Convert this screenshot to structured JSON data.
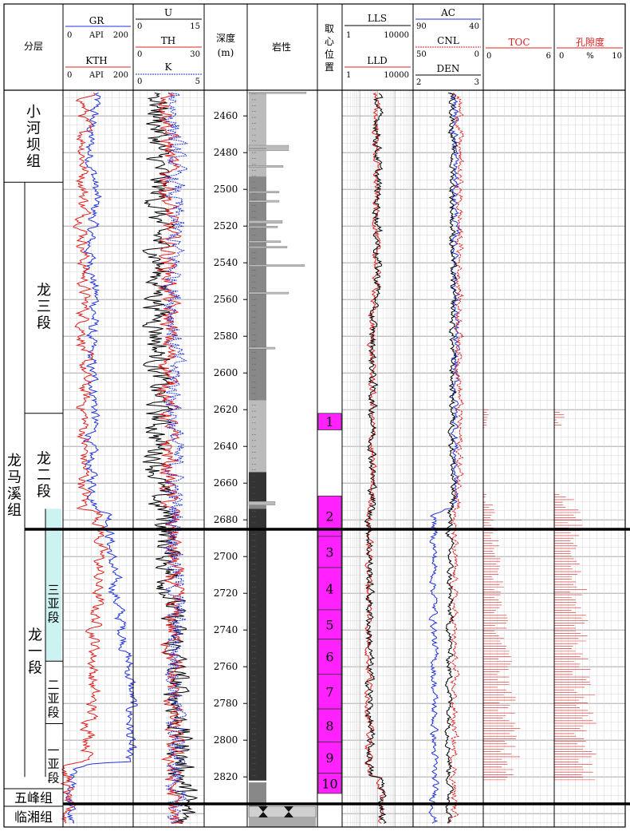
{
  "headers": {
    "layer": "分层",
    "gr": {
      "name": "GR",
      "min": "0",
      "unit": "API",
      "max": "200",
      "color": "#2233dd"
    },
    "kth": {
      "name": "KTH",
      "min": "0",
      "unit": "API",
      "max": "200",
      "color": "#e02020"
    },
    "u": {
      "name": "U",
      "min": "0",
      "max": "15",
      "color": "#000000"
    },
    "th": {
      "name": "TH",
      "min": "0",
      "max": "30",
      "color": "#e02020"
    },
    "k": {
      "name": "K",
      "min": "0",
      "max": "5",
      "color": "#2233dd"
    },
    "depth_l1": "深度",
    "depth_l2": "(m)",
    "litho": "岩性",
    "core_l1": "取",
    "core_l2": "心",
    "core_l3": "位",
    "core_l4": "置",
    "lls": {
      "name": "LLS",
      "min": "1",
      "max": "10000",
      "color": "#000000"
    },
    "lld": {
      "name": "LLD",
      "min": "1",
      "max": "10000",
      "color": "#e02020"
    },
    "ac": {
      "name": "AC",
      "min": "90",
      "max": "40",
      "color": "#2233dd"
    },
    "cnl": {
      "name": "CNL",
      "min": "50",
      "max": "0",
      "color": "#e02020"
    },
    "den": {
      "name": "DEN",
      "min": "2",
      "max": "3",
      "color": "#000000"
    },
    "toc": {
      "name": "TOC",
      "min": "0",
      "max": "6",
      "color": "#e02020"
    },
    "por": {
      "name": "孔隙度",
      "min": "0",
      "unit": "%",
      "max": "10",
      "color": "#e02020"
    }
  },
  "formations": [
    {
      "label": "小河坝组",
      "top": 2446,
      "bottom": 2500
    },
    {
      "label": "龙马溪组",
      "top": 2500,
      "bottom": 2820
    },
    {
      "label": "五峰组",
      "top": 2820,
      "bottom": 2823
    },
    {
      "label": "临湘组",
      "top": 2823,
      "bottom": 2836
    }
  ],
  "members": [
    {
      "label": "龙三段",
      "top": 2500,
      "bottom": 2622
    },
    {
      "label": "龙二段",
      "top": 2622,
      "bottom": 2674
    },
    {
      "label": "龙一段",
      "top": 2674,
      "bottom": 2820
    }
  ],
  "submembers": [
    {
      "label": "三亚段",
      "top": 2674,
      "bottom": 2757
    },
    {
      "label": "二亚段",
      "top": 2757,
      "bottom": 2791
    },
    {
      "label": "一亚段",
      "top": 2791,
      "bottom": 2820
    }
  ],
  "depth_ticks": [
    "2460",
    "2480",
    "2500",
    "2520",
    "2540",
    "2560",
    "2580",
    "2600",
    "2620",
    "2640",
    "2660",
    "2680",
    "2700",
    "2720",
    "2740",
    "2760",
    "2780",
    "2800",
    "2820"
  ],
  "cores": [
    {
      "label": "1",
      "top": 2622,
      "bottom": 2631
    },
    {
      "label": "2",
      "top": 2667,
      "bottom": 2689
    },
    {
      "label": "3",
      "top": 2689,
      "bottom": 2706
    },
    {
      "label": "4",
      "top": 2706,
      "bottom": 2729
    },
    {
      "label": "5",
      "top": 2729,
      "bottom": 2745
    },
    {
      "label": "6",
      "top": 2745,
      "bottom": 2764
    },
    {
      "label": "7",
      "top": 2764,
      "bottom": 2783
    },
    {
      "label": "8",
      "top": 2783,
      "bottom": 2801
    },
    {
      "label": "9",
      "top": 2801,
      "bottom": 2818
    },
    {
      "label": "10",
      "top": 2818,
      "bottom": 2829
    }
  ],
  "colors": {
    "core": "#ff22ff",
    "zone_fill": "#ccf2f2",
    "litho_light": "#bbbbbb",
    "litho_mid": "#888888",
    "litho_dark": "#333333"
  },
  "chart_data": {
    "type": "table",
    "depth_range": [
      2446,
      2836
    ],
    "depth_unit": "m",
    "series": [
      {
        "name": "GR",
        "range": [
          0,
          200
        ],
        "unit": "API"
      },
      {
        "name": "KTH",
        "range": [
          0,
          200
        ],
        "unit": "API"
      },
      {
        "name": "U",
        "range": [
          0,
          15
        ]
      },
      {
        "name": "TH",
        "range": [
          0,
          30
        ]
      },
      {
        "name": "K",
        "range": [
          0,
          5
        ]
      },
      {
        "name": "LLS",
        "range": [
          1,
          10000
        ],
        "scale": "log"
      },
      {
        "name": "LLD",
        "range": [
          1,
          10000
        ],
        "scale": "log"
      },
      {
        "name": "AC",
        "range": [
          90,
          40
        ]
      },
      {
        "name": "CNL",
        "range": [
          50,
          0
        ]
      },
      {
        "name": "DEN",
        "range": [
          2,
          3
        ]
      },
      {
        "name": "TOC",
        "range": [
          0,
          6
        ]
      },
      {
        "name": "孔隙度",
        "range": [
          0,
          10
        ],
        "unit": "%"
      }
    ]
  }
}
